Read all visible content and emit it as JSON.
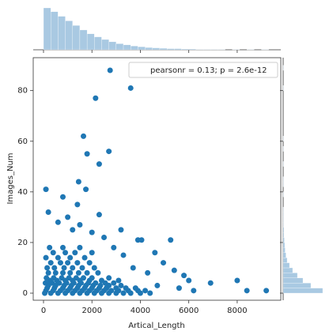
{
  "chart_data": {
    "type": "scatter",
    "xlabel": "Artical_Length",
    "ylabel": "Images_Num",
    "legend": "pearsonr = 0.13; p = 2.6e-12",
    "legend_corner": "upper right",
    "color": "#1f77b4",
    "hist_color": "#a9c9e2",
    "xlim": [
      -425,
      9800
    ],
    "ylim": [
      -2.8,
      93
    ],
    "xticks": [
      0,
      2000,
      4000,
      6000,
      8000
    ],
    "yticks": [
      0,
      20,
      40,
      60,
      80
    ],
    "x": [
      50,
      300,
      600,
      900,
      1200,
      1500,
      1800,
      2100,
      2400,
      2700,
      3000,
      3300,
      3600,
      4000,
      4400,
      100,
      400,
      700,
      1000,
      1300,
      1600,
      1900,
      2200,
      2500,
      2800,
      3100,
      3500,
      3900,
      4200,
      150,
      450,
      800,
      1100,
      1400,
      1700,
      2000,
      2300,
      2600,
      3000,
      3400,
      3800,
      200,
      500,
      850,
      1150,
      1450,
      1750,
      2050,
      2350,
      2700,
      3200,
      80,
      350,
      650,
      950,
      1250,
      1550,
      1850,
      2150,
      2550,
      2900,
      250,
      550,
      900,
      1200,
      1500,
      1900,
      2400,
      3100,
      120,
      420,
      750,
      1050,
      1350,
      1650,
      2000,
      2700,
      200,
      500,
      800,
      1100,
      1450,
      1800,
      2250,
      150,
      450,
      850,
      1200,
      1600,
      2100,
      300,
      700,
      1000,
      1400,
      1900,
      100,
      600,
      1100,
      1700,
      400,
      900,
      1300,
      2000,
      250,
      800,
      1500,
      2750,
      3600,
      2150,
      1650,
      1800,
      2700,
      2300,
      1450,
      1750,
      100,
      800,
      1400,
      200,
      1000,
      1500,
      2300,
      3200,
      3900,
      4050,
      5250,
      4600,
      4950,
      5400,
      5800,
      6000,
      6900,
      8000,
      8400,
      9200,
      6200,
      5600,
      4700,
      4300,
      3700,
      3300,
      2900,
      2500,
      2000,
      1200,
      600
    ],
    "values": [
      0,
      0,
      0,
      0,
      0,
      0,
      0,
      0,
      0,
      0,
      0,
      0,
      0,
      0,
      0,
      1,
      1,
      1,
      1,
      1,
      1,
      1,
      1,
      1,
      1,
      1,
      1,
      1,
      1,
      2,
      2,
      2,
      2,
      2,
      2,
      2,
      2,
      2,
      2,
      2,
      2,
      3,
      3,
      3,
      3,
      3,
      3,
      3,
      3,
      3,
      3,
      4,
      4,
      4,
      4,
      4,
      4,
      4,
      4,
      4,
      4,
      5,
      5,
      5,
      5,
      5,
      5,
      5,
      5,
      6,
      6,
      6,
      6,
      6,
      6,
      6,
      6,
      8,
      8,
      8,
      8,
      8,
      8,
      8,
      10,
      10,
      10,
      10,
      10,
      10,
      12,
      12,
      12,
      12,
      12,
      14,
      14,
      14,
      14,
      16,
      16,
      16,
      16,
      18,
      18,
      18,
      88,
      81,
      77,
      62,
      55,
      56,
      51,
      44,
      41,
      41,
      38,
      35,
      32,
      30,
      27,
      31,
      25,
      21,
      21,
      21,
      16,
      12,
      9,
      7,
      5,
      4,
      5,
      1,
      1,
      1,
      2,
      3,
      8,
      10,
      15,
      18,
      22,
      24,
      25,
      28
    ],
    "marginal_x": {
      "bins": [
        0,
        300,
        600,
        900,
        1200,
        1500,
        1800,
        2100,
        2400,
        2700,
        3000,
        3300,
        3600,
        3900,
        4200,
        4500,
        4800,
        5100,
        5400,
        5700,
        6000,
        6300,
        6600,
        6900,
        7200,
        7500,
        7800,
        8100,
        8400,
        8700,
        9000,
        9300
      ],
      "counts": [
        110,
        100,
        88,
        76,
        64,
        52,
        42,
        34,
        27,
        21,
        16,
        13,
        10,
        8,
        6,
        5,
        4,
        3,
        3,
        2,
        2,
        1,
        1,
        1,
        1,
        0,
        1,
        0,
        1,
        0,
        1
      ]
    },
    "marginal_y": {
      "bins": [
        0,
        2,
        4,
        6,
        8,
        10,
        12,
        14,
        16,
        18,
        20,
        22,
        24,
        26,
        28,
        30,
        32,
        34,
        36,
        38,
        40,
        42,
        44,
        46,
        48,
        50,
        52,
        54,
        56,
        58,
        60,
        62,
        64,
        66,
        68,
        70,
        72,
        74,
        76,
        78,
        80,
        82,
        84,
        86,
        88,
        90
      ],
      "counts": [
        100,
        70,
        50,
        36,
        24,
        16,
        10,
        7,
        5,
        4,
        3,
        2,
        2,
        1,
        1,
        1,
        1,
        0,
        0,
        1,
        0,
        1,
        1,
        0,
        0,
        1,
        0,
        0,
        1,
        0,
        1,
        0,
        0,
        0,
        0,
        0,
        0,
        0,
        0,
        0,
        1,
        0,
        0,
        0,
        1
      ]
    }
  }
}
